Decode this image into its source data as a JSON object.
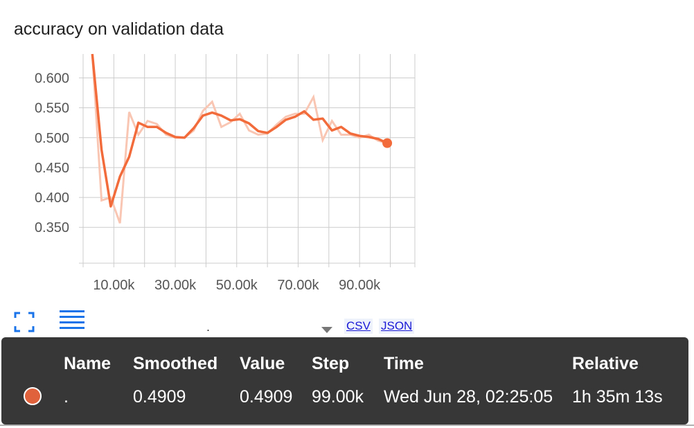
{
  "card": {
    "title": "accuracy on validation data"
  },
  "toolbar": {
    "expand_icon": "fullscreen-icon",
    "list_icon": "lines-icon",
    "run_selector_value": ".",
    "csv_label": "CSV",
    "json_label": "JSON"
  },
  "colors": {
    "series": "#f26b3a",
    "series_raw": "#f9c6b3",
    "grid": "#cccccc",
    "tooltip_bg": "#373737",
    "swatch": "#e0623c"
  },
  "chart_data": {
    "type": "line",
    "title": "accuracy on validation data",
    "xlabel": "",
    "ylabel": "",
    "xlim": [
      0,
      108000
    ],
    "ylim": [
      0.29,
      0.64
    ],
    "x_ticks": [
      10000,
      30000,
      50000,
      70000,
      90000
    ],
    "x_tick_labels": [
      "10.00k",
      "30.00k",
      "50.00k",
      "70.00k",
      "90.00k"
    ],
    "y_ticks": [
      0.35,
      0.4,
      0.45,
      0.5,
      0.55,
      0.6
    ],
    "y_tick_labels": [
      "0.350",
      "0.400",
      "0.450",
      "0.500",
      "0.550",
      "0.600"
    ],
    "grid": true,
    "series": [
      {
        "role": "smoothed",
        "x": [
          3000,
          6000,
          9000,
          12000,
          15000,
          18000,
          21000,
          24000,
          27000,
          30000,
          33000,
          36000,
          39000,
          42000,
          45000,
          48000,
          51000,
          54000,
          57000,
          60000,
          63000,
          66000,
          69000,
          72000,
          75000,
          78000,
          81000,
          84000,
          87000,
          90000,
          93000,
          96000,
          99000
        ],
        "values": [
          0.64,
          0.48,
          0.385,
          0.435,
          0.468,
          0.525,
          0.518,
          0.518,
          0.508,
          0.501,
          0.5,
          0.516,
          0.537,
          0.542,
          0.537,
          0.529,
          0.531,
          0.524,
          0.511,
          0.508,
          0.518,
          0.53,
          0.535,
          0.544,
          0.53,
          0.532,
          0.512,
          0.518,
          0.507,
          0.503,
          0.501,
          0.498,
          0.4909
        ]
      },
      {
        "role": "raw",
        "x": [
          3000,
          6000,
          9000,
          12000,
          15000,
          18000,
          21000,
          24000,
          27000,
          30000,
          33000,
          36000,
          39000,
          42000,
          45000,
          48000,
          51000,
          54000,
          57000,
          60000,
          63000,
          66000,
          69000,
          72000,
          75000,
          78000,
          81000,
          84000,
          87000,
          90000,
          93000,
          96000,
          99000
        ],
        "values": [
          0.64,
          0.395,
          0.4,
          0.357,
          0.543,
          0.505,
          0.528,
          0.523,
          0.505,
          0.5,
          0.5,
          0.512,
          0.545,
          0.56,
          0.518,
          0.526,
          0.54,
          0.512,
          0.505,
          0.507,
          0.522,
          0.535,
          0.54,
          0.54,
          0.568,
          0.496,
          0.528,
          0.505,
          0.505,
          0.5,
          0.505,
          0.495,
          0.4909
        ]
      }
    ]
  },
  "tooltip": {
    "headers": {
      "name": "Name",
      "smoothed": "Smoothed",
      "value": "Value",
      "step": "Step",
      "time": "Time",
      "relative": "Relative"
    },
    "row": {
      "name": ".",
      "smoothed": "0.4909",
      "value": "0.4909",
      "step": "99.00k",
      "time": "Wed Jun 28, 02:25:05",
      "relative": "1h 35m 13s"
    }
  }
}
